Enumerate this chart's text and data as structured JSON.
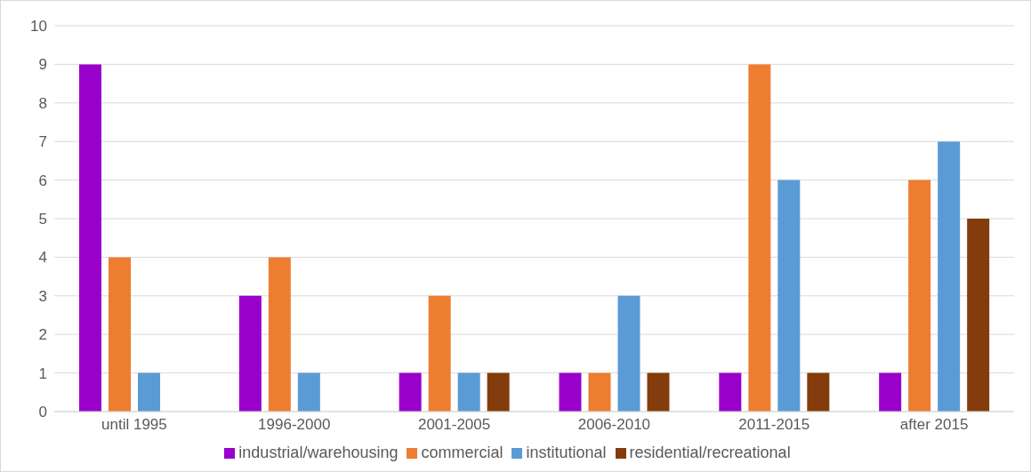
{
  "chart_data": {
    "type": "bar",
    "categories": [
      "until 1995",
      "1996-2000",
      "2001-2005",
      "2006-2010",
      "2011-2015",
      "after 2015"
    ],
    "series": [
      {
        "name": "industrial/warehousing",
        "color": "#9900cc",
        "values": [
          9,
          3,
          1,
          1,
          1,
          1
        ]
      },
      {
        "name": "commercial",
        "color": "#ed7d31",
        "values": [
          4,
          4,
          3,
          1,
          9,
          6
        ]
      },
      {
        "name": "institutional",
        "color": "#5b9bd5",
        "values": [
          1,
          1,
          1,
          3,
          6,
          7
        ]
      },
      {
        "name": "residential/recreational",
        "color": "#843c0c",
        "values": [
          0,
          0,
          1,
          1,
          1,
          5
        ]
      }
    ],
    "ylim": [
      0,
      10
    ],
    "yticks": [
      0,
      1,
      2,
      3,
      4,
      5,
      6,
      7,
      8,
      9,
      10
    ],
    "grid": "y",
    "legend": "bottom"
  }
}
